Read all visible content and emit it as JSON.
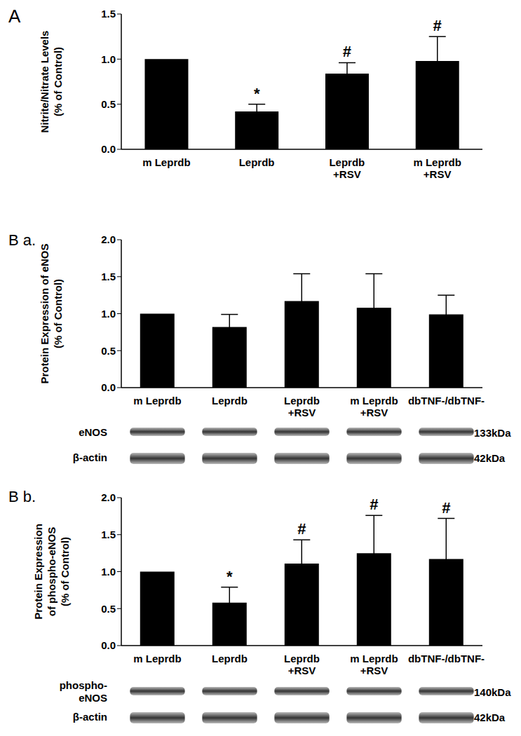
{
  "chart_data": [
    {
      "type": "bar",
      "title": "A",
      "ylabel": "Nitrite/Nitrate Levels\n(% of Control)",
      "categories": [
        "m Leprdb",
        "Leprdb",
        "Leprdb\n+RSV",
        "m Leprdb\n+RSV"
      ],
      "values": [
        1.0,
        0.42,
        0.84,
        0.98
      ],
      "errors": [
        null,
        0.08,
        0.12,
        0.27
      ],
      "annotations": [
        null,
        "*",
        "#",
        "#"
      ],
      "color": "#000000",
      "ylim": [
        0,
        1.5
      ],
      "yticks": [
        {
          "value": 0,
          "label": "0.0"
        },
        0.5,
        {
          "value": 1,
          "label": "1.0"
        },
        1.5
      ]
    },
    {
      "type": "bar",
      "title": "B a.",
      "ylabel": "Protein Expression of eNOS\n(% of Control)",
      "categories": [
        "m Leprdb",
        "Leprdb",
        "Leprdb\n+RSV",
        "m Leprdb\n+RSV",
        "dbTNF-/dbTNF-"
      ],
      "values": [
        1.0,
        0.82,
        1.17,
        1.08,
        0.99
      ],
      "errors": [
        null,
        0.17,
        0.37,
        0.46,
        0.26
      ],
      "annotations": [
        null,
        null,
        null,
        null,
        null
      ],
      "color": "#000000",
      "ylim": [
        0,
        2
      ],
      "yticks": [
        {
          "value": 0,
          "label": "0.0"
        },
        0.5,
        {
          "value": 1,
          "label": "1.0"
        },
        1.5,
        {
          "value": 2,
          "label": "2.0"
        }
      ],
      "blot": [
        {
          "label": "eNOS",
          "size": "133kDa"
        },
        {
          "label": "β-actin",
          "size": "42kDa"
        }
      ]
    },
    {
      "type": "bar",
      "title": "B b.",
      "ylabel": "Protein Expression\nof phospho-eNOS\n(% of Control)",
      "categories": [
        "m Leprdb",
        "Leprdb",
        "Leprdb\n+RSV",
        "m Leprdb\n+RSV",
        "dbTNF-/dbTNF-"
      ],
      "values": [
        1.0,
        0.58,
        1.11,
        1.25,
        1.17
      ],
      "errors": [
        null,
        0.21,
        0.32,
        0.51,
        0.55
      ],
      "annotations": [
        null,
        "*",
        "#",
        "#",
        "#"
      ],
      "color": "#000000",
      "ylim": [
        0,
        2
      ],
      "yticks": [
        {
          "value": 0,
          "label": "0.0"
        },
        0.5,
        {
          "value": 1,
          "label": "1.0"
        },
        1.5,
        {
          "value": 2,
          "label": "2.0"
        }
      ],
      "blot": [
        {
          "label": "phospho-\neNOS",
          "size": "140kDa"
        },
        {
          "label": "β-actin",
          "size": "42kDa"
        }
      ]
    }
  ]
}
